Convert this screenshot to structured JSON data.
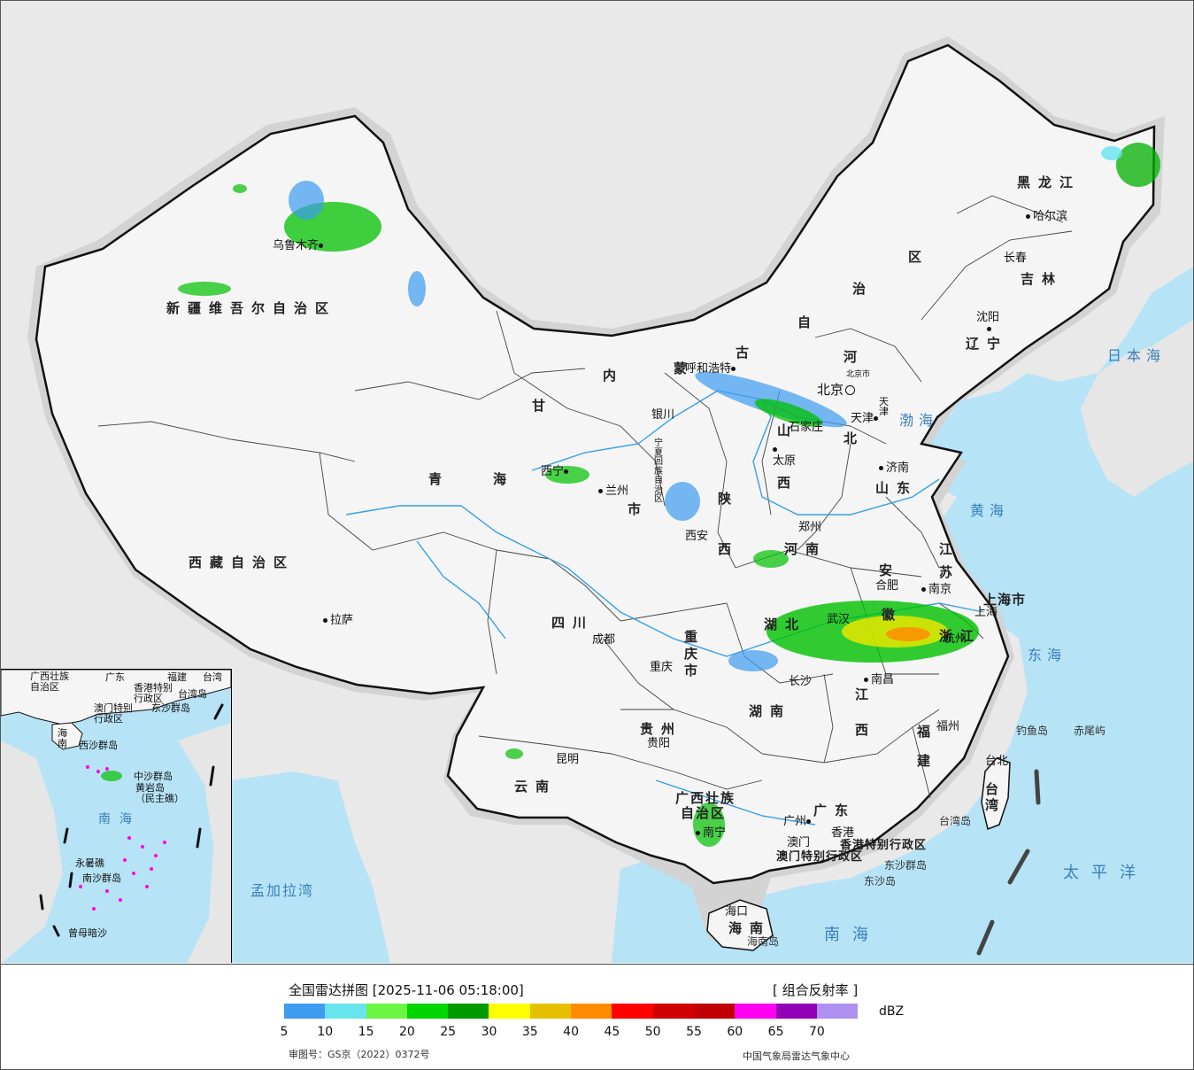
{
  "title": "全国雷达拼图 [2025-11-06 05:18:00]",
  "product": "[ 组合反射率 ]",
  "unit": "dBZ",
  "review_number": "审图号：GS京（2022）0372号",
  "agency": "中国气象局雷达气象中心",
  "colorbar": [
    {
      "value": 5,
      "color": "#3d9bf0"
    },
    {
      "value": 10,
      "color": "#66e5ee"
    },
    {
      "value": 15,
      "color": "#6cf542"
    },
    {
      "value": 20,
      "color": "#00d500"
    },
    {
      "value": 25,
      "color": "#009a00"
    },
    {
      "value": 30,
      "color": "#ffff00"
    },
    {
      "value": 35,
      "color": "#e6c000"
    },
    {
      "value": 40,
      "color": "#ff8c00"
    },
    {
      "value": 45,
      "color": "#ff0000"
    },
    {
      "value": 50,
      "color": "#d00000"
    },
    {
      "value": 55,
      "color": "#c00000"
    },
    {
      "value": 60,
      "color": "#ff00f0"
    },
    {
      "value": 65,
      "color": "#9400b8"
    },
    {
      "value": 70,
      "color": "#ae90f0"
    }
  ],
  "tick_labels": [
    "5",
    "10",
    "15",
    "20",
    "25",
    "30",
    "35",
    "40",
    "45",
    "50",
    "55",
    "60",
    "65",
    "70"
  ],
  "colors": {
    "sea": "#b6e3f6",
    "land": "#f4f4f4",
    "outside": "#e9e9e9",
    "border": "#111111",
    "river": "#35a0e8"
  },
  "map": {
    "provinces": {
      "xinjiang": "新疆维吾尔自治区",
      "xizang": "西藏自治区",
      "qinghai_1": "青",
      "qinghai_2": "海",
      "gansu": "甘",
      "neimenggu_1": "内",
      "neimenggu_2": "蒙",
      "neimenggu_3": "古",
      "neimenggu_4": "自",
      "neimenggu_5": "治",
      "neimenggu_6": "区",
      "heilongjiang": "黑龙江",
      "jilin": "吉林",
      "liaoning": "辽宁",
      "hebei_1": "河",
      "hebei_2": "北",
      "shanxi_1": "山",
      "shanxi_2": "西",
      "shaanxi_1": "陕",
      "shaanxi_2": "西",
      "shandong": "山东",
      "henan": "河南",
      "jiangsu_1": "江",
      "jiangsu_2": "苏",
      "anhui_1": "安",
      "anhui_2": "徽",
      "hubei": "湖北",
      "zhejiang": "浙江",
      "jiangxi_1": "江",
      "jiangxi_2": "西",
      "hunan": "湖南",
      "sichuan": "四川",
      "chongqing": "重庆市",
      "guizhou": "贵州",
      "yunnan": "云南",
      "guangxi_1": "广西壮族",
      "guangxi_2": "自治区",
      "guangdong": "广东",
      "fujian_1": "福",
      "fujian_2": "建",
      "taiwan": "台湾",
      "hainan": "海南",
      "shanghai": "上海市",
      "ningxia": "宁夏回族自治区",
      "lanzhou_city": "市",
      "hongkong": "香港特别行政区",
      "macau": "澳门特别行政区"
    },
    "cities": [
      "乌鲁木齐",
      "拉萨",
      "西宁",
      "兰州",
      "银川",
      "呼和浩特",
      "北京",
      "天津",
      "石家庄",
      "太原",
      "济南",
      "郑州",
      "西安",
      "成都",
      "重庆",
      "贵阳",
      "昆明",
      "南宁",
      "广州",
      "香港",
      "澳门",
      "海口",
      "长沙",
      "南昌",
      "合肥",
      "南京",
      "上海",
      "杭州",
      "福州",
      "台北",
      "武汉",
      "沈阳",
      "长春",
      "哈尔滨"
    ],
    "seas": [
      "日本海",
      "渤海",
      "黄海",
      "东海",
      "太平洋",
      "南海",
      "孟加拉湾"
    ],
    "islands": [
      "钓鱼岛",
      "赤尾屿",
      "台湾岛",
      "东沙群岛",
      "东沙岛",
      "海南岛"
    ],
    "beijing_small": "北京市",
    "hebei_tianjin": "天津"
  },
  "inset": {
    "labels": {
      "guangxi": "广西壮族自治区",
      "guangdong": "广东",
      "fujian": "福建",
      "taiwan": "台湾",
      "hk": "香港特别行政区",
      "macau": "澳门特别行政区",
      "taiwan_island": "台湾岛",
      "dongsha": "东沙群岛",
      "hainan": "海南",
      "xisha": "西沙群岛",
      "zhongsha": "中沙群岛",
      "huangyan": "黄岩岛（民主礁）",
      "nansha": "南沙群岛",
      "yongshu": "永暑礁",
      "zengmu": "曾母暗沙",
      "nanhai": "南海"
    }
  }
}
